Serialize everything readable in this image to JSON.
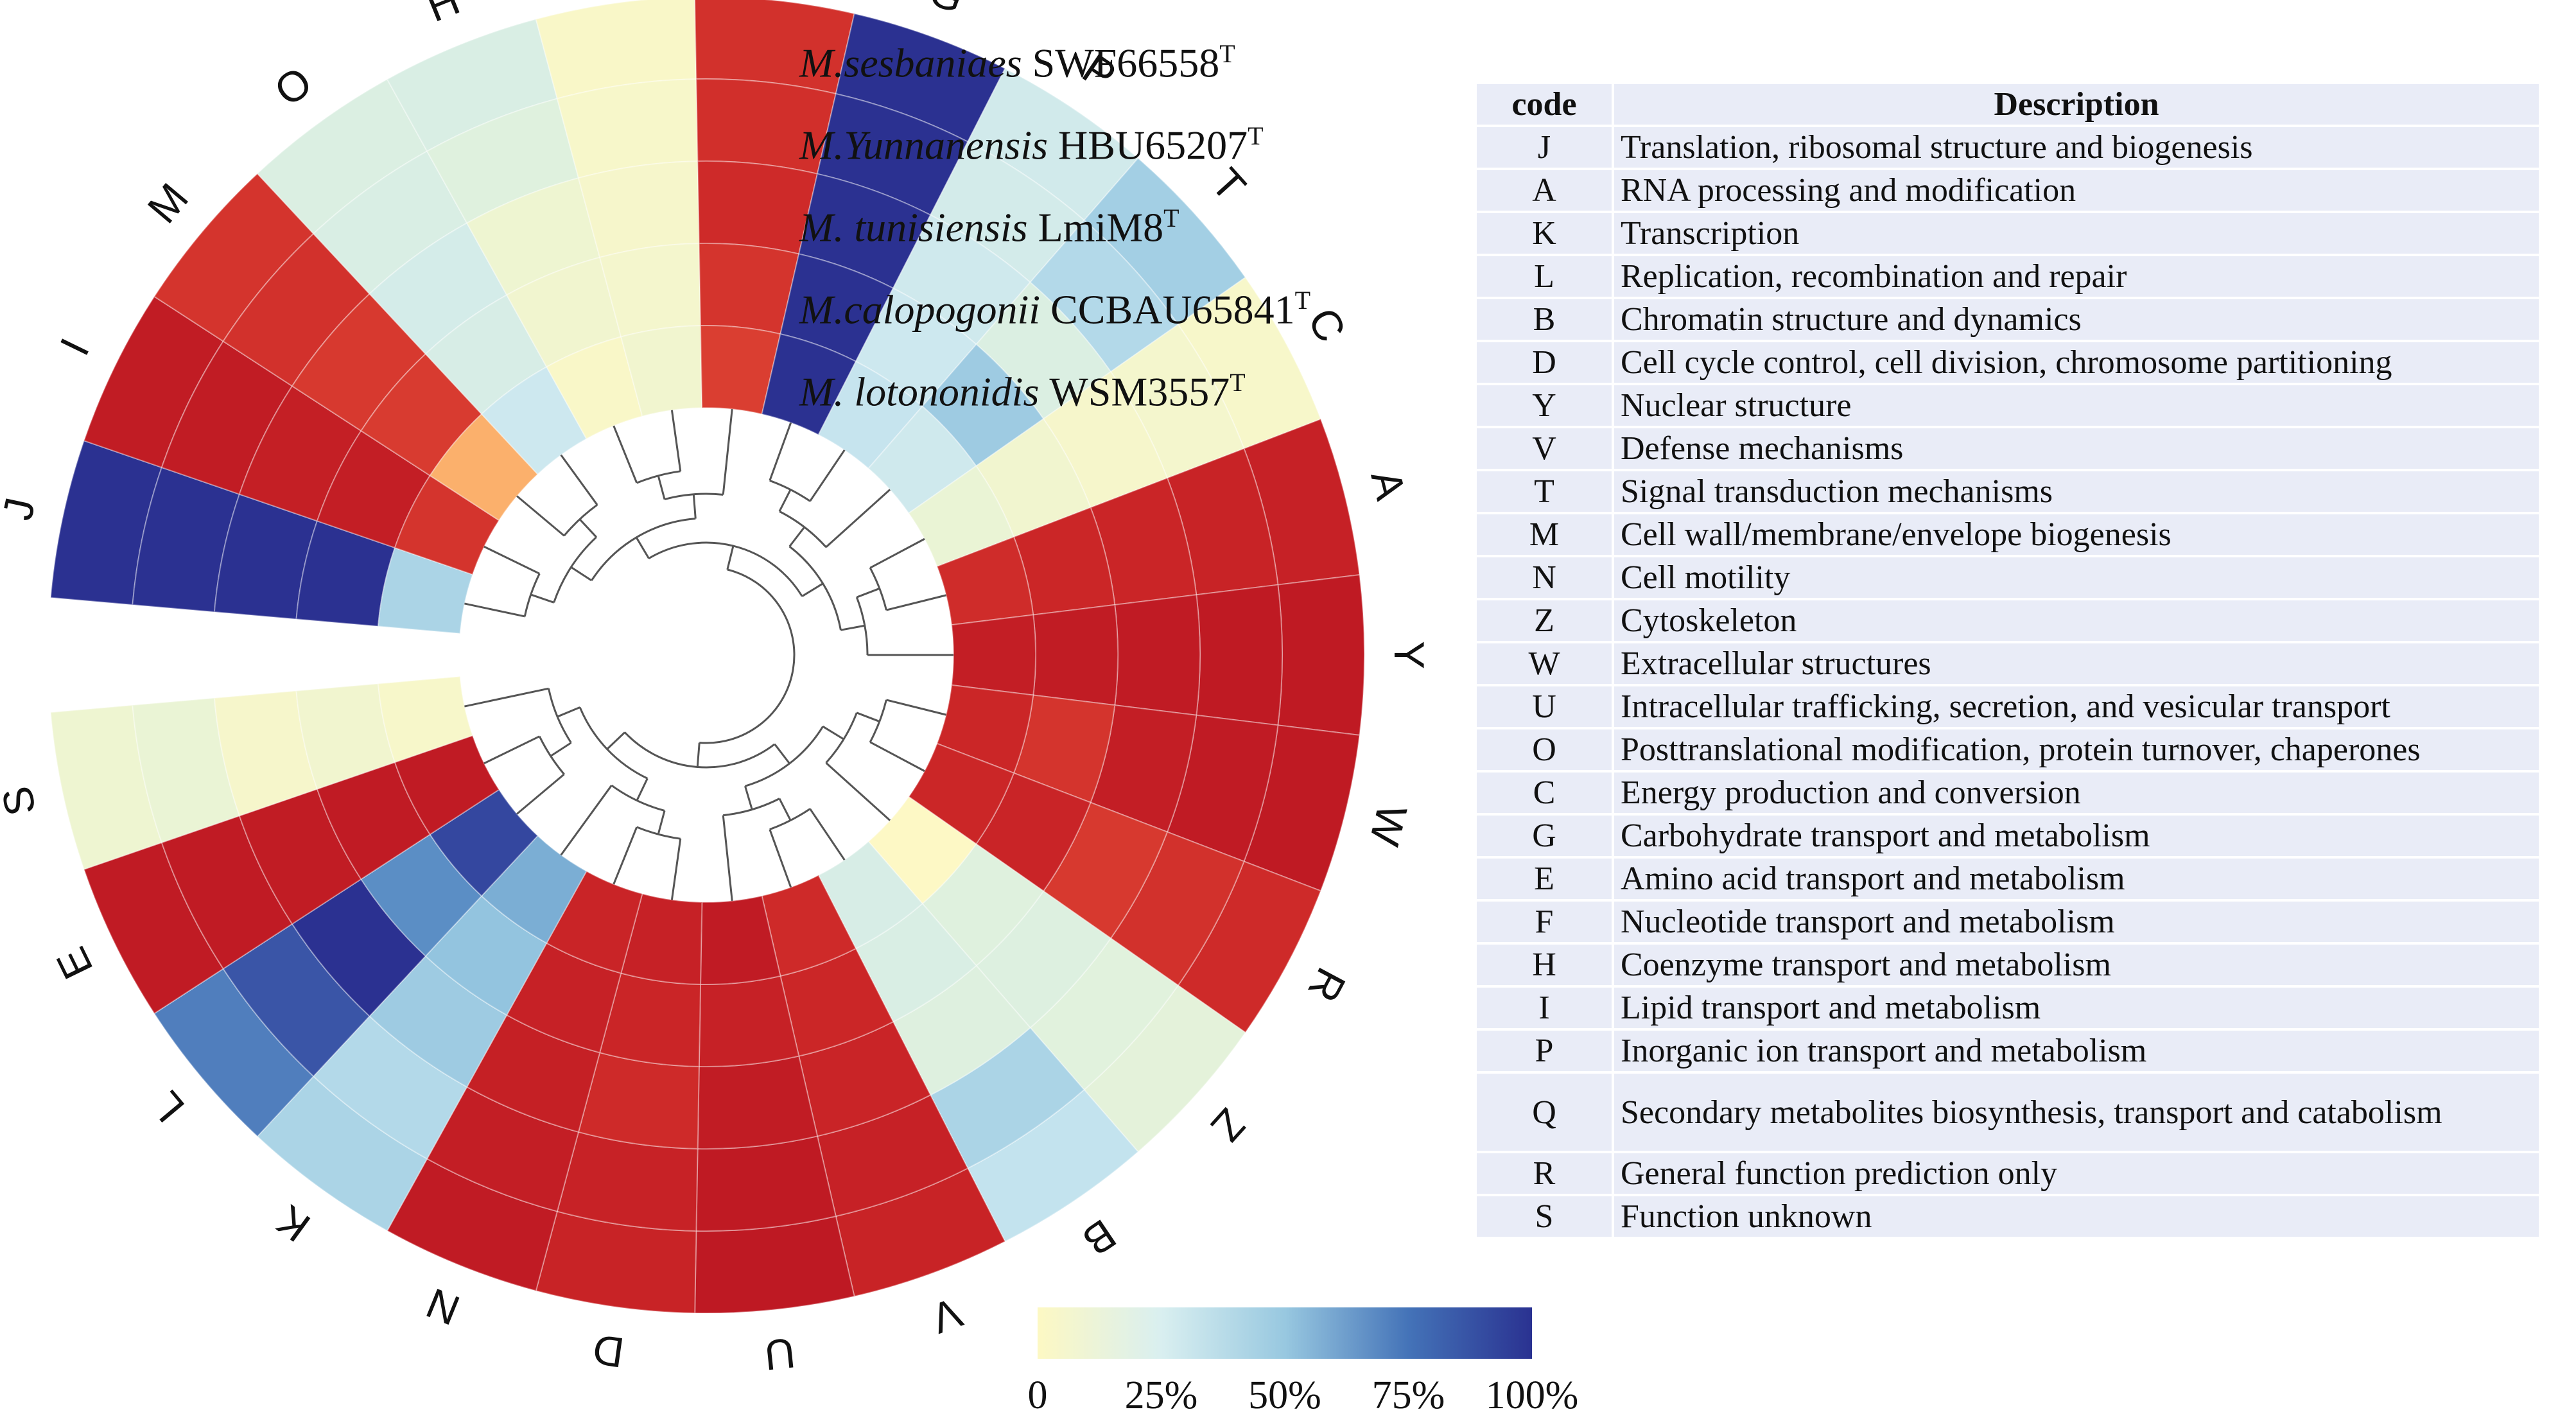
{
  "chart_data": {
    "type": "heatmap",
    "layout": "circular",
    "value_range": [
      0,
      100
    ],
    "series": [
      {
        "name": "M.sesbaniaes SWF66558",
        "label_species": "M.sesbaniaes",
        "label_strain": "SWF66558",
        "label_sup": "T"
      },
      {
        "name": "M.Yunnanensis HBU65207",
        "label_species": "M.Yunnanensis",
        "label_strain": "HBU65207",
        "label_sup": "T"
      },
      {
        "name": "M. tunisiensis LmiM8",
        "label_species": "M. tunisiensis",
        "label_strain": "LmiM8",
        "label_sup": "T"
      },
      {
        "name": "M.calopogonii CCBAU65841",
        "label_species": "M.calopogonii",
        "label_strain": "CCBAU65841",
        "label_sup": "T"
      },
      {
        "name": "M. lotononidis WSM3557",
        "label_species": "M. lotononidis",
        "label_strain": "WSM3557",
        "label_sup": "T"
      }
    ],
    "categories": [
      "J",
      "I",
      "M",
      "O",
      "H",
      "Q",
      "F",
      "G",
      "P",
      "T",
      "C",
      "A",
      "Y",
      "W",
      "R",
      "Z",
      "B",
      "V",
      "U",
      "D",
      "N",
      "K",
      "L",
      "E",
      "S"
    ],
    "values": [
      [
        100,
        100,
        100,
        100,
        55
      ],
      [
        97,
        97,
        95,
        96,
        82
      ],
      [
        82,
        83,
        80,
        79,
        35
      ],
      [
        28,
        30,
        35,
        32,
        42
      ],
      [
        30,
        24,
        12,
        10,
        4
      ],
      [
        4,
        5,
        6,
        8,
        10
      ],
      [
        83,
        84,
        86,
        82,
        78
      ],
      [
        100,
        100,
        100,
        100,
        100
      ],
      [
        38,
        36,
        40,
        42,
        45
      ],
      [
        58,
        52,
        28,
        60,
        40
      ],
      [
        5,
        8,
        6,
        10,
        15
      ],
      [
        93,
        91,
        89,
        88,
        85
      ],
      [
        99,
        99,
        98,
        97,
        96
      ],
      [
        99,
        98,
        96,
        82,
        88
      ],
      [
        86,
        83,
        80,
        90,
        88
      ],
      [
        20,
        22,
        26,
        24,
        1
      ],
      [
        46,
        55,
        25,
        30,
        32
      ],
      [
        91,
        93,
        90,
        88,
        86
      ],
      [
        100,
        99,
        97,
        93,
        98
      ],
      [
        91,
        92,
        86,
        89,
        93
      ],
      [
        98,
        96,
        94,
        93,
        90
      ],
      [
        55,
        52,
        60,
        64,
        70
      ],
      [
        82,
        92,
        100,
        78,
        95
      ],
      [
        98,
        98,
        97,
        98,
        98
      ],
      [
        12,
        15,
        6,
        10,
        5
      ]
    ],
    "colorbar": {
      "ticks": [
        "0",
        "25%",
        "50%",
        "75%",
        "100%"
      ]
    }
  },
  "table": {
    "headers": {
      "code": "code",
      "description": "Description"
    },
    "rows": [
      {
        "code": "J",
        "desc": "Translation, ribosomal structure and biogenesis"
      },
      {
        "code": "A",
        "desc": "RNA processing and modification"
      },
      {
        "code": "K",
        "desc": "Transcription"
      },
      {
        "code": "L",
        "desc": "Replication, recombination and repair"
      },
      {
        "code": "B",
        "desc": "Chromatin structure and dynamics"
      },
      {
        "code": "D",
        "desc": "Cell cycle control, cell division, chromosome partitioning"
      },
      {
        "code": "Y",
        "desc": "Nuclear structure"
      },
      {
        "code": "V",
        "desc": "Defense mechanisms"
      },
      {
        "code": "T",
        "desc": "Signal transduction mechanisms"
      },
      {
        "code": "M",
        "desc": "Cell wall/membrane/envelope biogenesis"
      },
      {
        "code": "N",
        "desc": "Cell motility"
      },
      {
        "code": "Z",
        "desc": "Cytoskeleton"
      },
      {
        "code": "W",
        "desc": "Extracellular structures"
      },
      {
        "code": "U",
        "desc": "Intracellular trafficking, secretion, and vesicular transport"
      },
      {
        "code": "O",
        "desc": "Posttranslational modification, protein turnover, chaperones"
      },
      {
        "code": "C",
        "desc": "Energy production and conversion"
      },
      {
        "code": "G",
        "desc": "Carbohydrate transport and metabolism"
      },
      {
        "code": "E",
        "desc": "Amino acid transport and metabolism"
      },
      {
        "code": "F",
        "desc": "Nucleotide transport and metabolism"
      },
      {
        "code": "H",
        "desc": "Coenzyme transport and metabolism"
      },
      {
        "code": "I",
        "desc": "Lipid transport and metabolism"
      },
      {
        "code": "P",
        "desc": "Inorganic ion transport and metabolism"
      },
      {
        "code": "Q",
        "desc": "Secondary metabolites biosynthesis, transport and catabolism"
      },
      {
        "code": "R",
        "desc": "General function prediction only"
      },
      {
        "code": "S",
        "desc": "Function unknown"
      }
    ]
  }
}
